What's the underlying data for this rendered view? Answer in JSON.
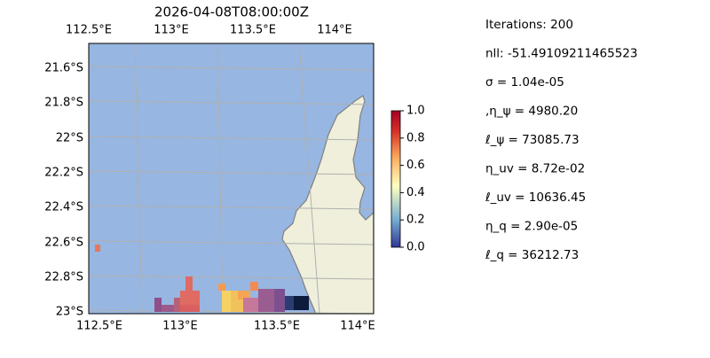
{
  "title": "2026-04-08T08:00:00Z",
  "map": {
    "top_ticks": [
      "112.5°E",
      "113°E",
      "113.5°E",
      "114°E"
    ],
    "bottom_ticks": [
      "112.5°E",
      "113°E",
      "113.5°E",
      "114°E"
    ],
    "left_ticks": [
      "21.6°S",
      "21.8°S",
      "22°S",
      "22.2°S",
      "22.4°S",
      "22.6°S",
      "22.8°S",
      "23°S"
    ]
  },
  "colorbar": {
    "ticks": [
      "0.0",
      "0.2",
      "0.4",
      "0.6",
      "0.8",
      "1.0"
    ]
  },
  "parameters": [
    "Iterations: 200",
    "nll: -51.49109211465523",
    "σ = 1.04e-05",
    ",η_ψ = 4980.20",
    "ℓ_ψ = 73085.73",
    "η_uv = 8.72e-02",
    "ℓ_uv = 10636.45",
    "η_q = 2.90e-05",
    "ℓ_q = 36212.73"
  ]
}
